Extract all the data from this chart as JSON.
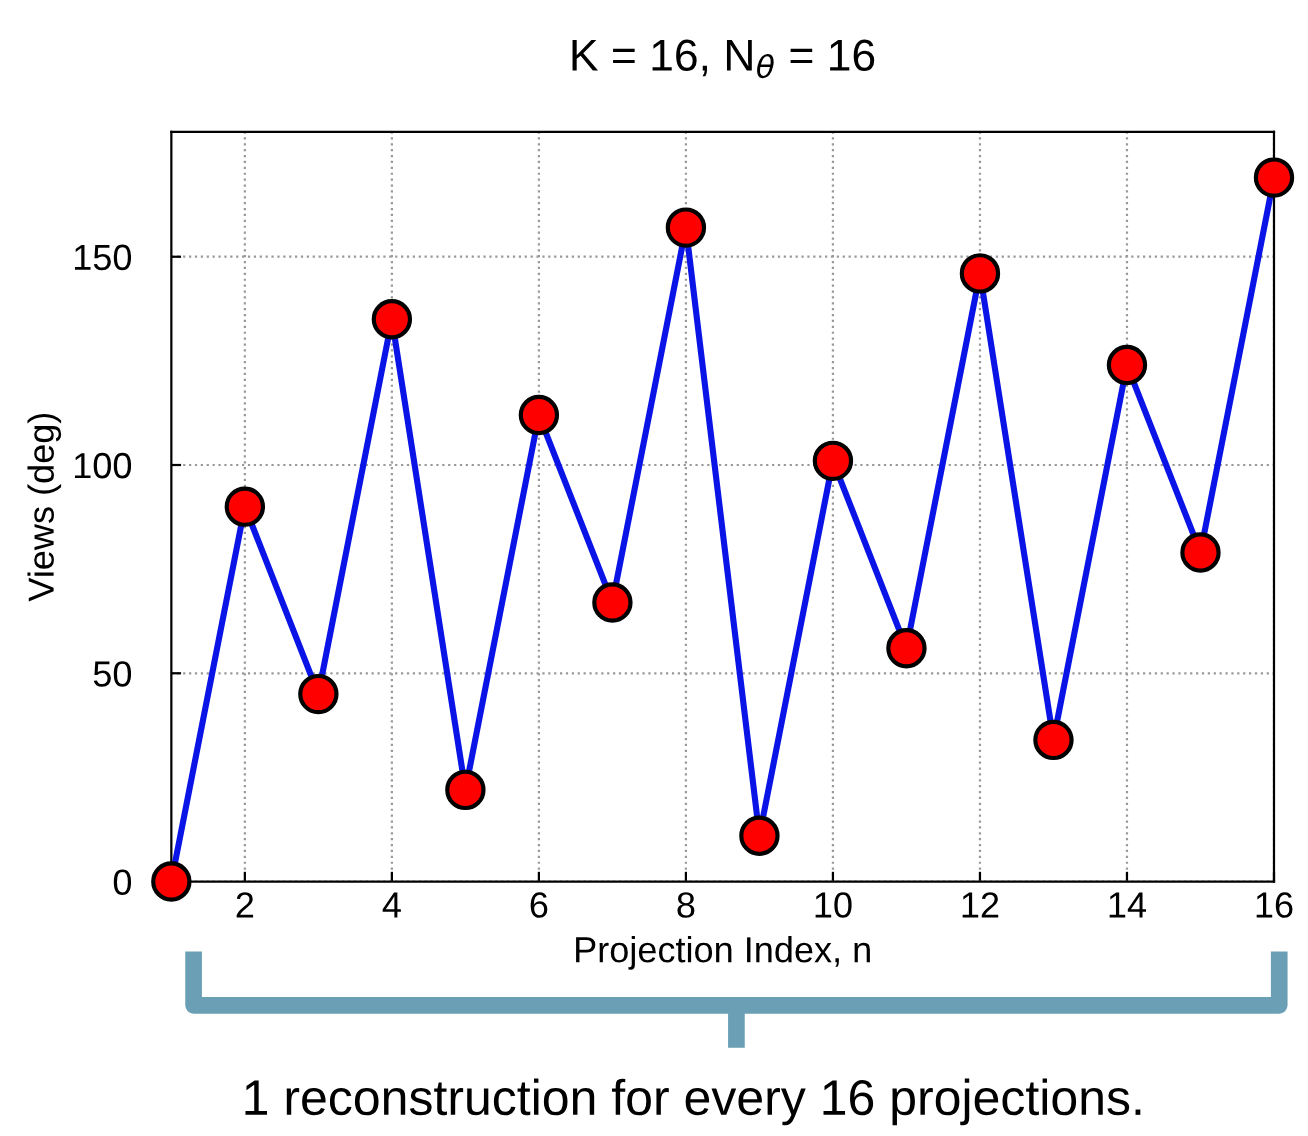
{
  "chart_data": {
    "type": "line",
    "title": "K = 16, N$_{θ}$ = 16",
    "xlabel": "Projection Index, n",
    "ylabel": "Views (deg)",
    "x": [
      1,
      2,
      3,
      4,
      5,
      6,
      7,
      8,
      9,
      10,
      11,
      12,
      13,
      14,
      15,
      16
    ],
    "series": [
      {
        "color": "#0a14e6",
        "colors": [
          "#ff0000",
          "#ff0000",
          "#ff0000",
          "#ff0000",
          "#ff0000",
          "#ff0000",
          "#ff0000",
          "#ff0000",
          "#ff0000",
          "#ff0000",
          "#ff0000",
          "#ff0000",
          "#ff0000",
          "#ff0000",
          "#ff0000",
          "#ff0000"
        ],
        "values": [
          0,
          90,
          45,
          135,
          22,
          112,
          67,
          157,
          11,
          101,
          56,
          146,
          34,
          124,
          79,
          169
        ]
      }
    ],
    "xlim": [
      1,
      16
    ],
    "xticks": [
      2,
      4,
      6,
      8,
      10,
      12,
      14,
      16
    ],
    "ylim": [
      0,
      180
    ],
    "yticks": [
      0,
      50,
      100,
      150
    ],
    "grid": true,
    "marker": "circle",
    "line_style": "solid",
    "annotations": [
      "1 reconstruction for every 16 projections."
    ]
  }
}
